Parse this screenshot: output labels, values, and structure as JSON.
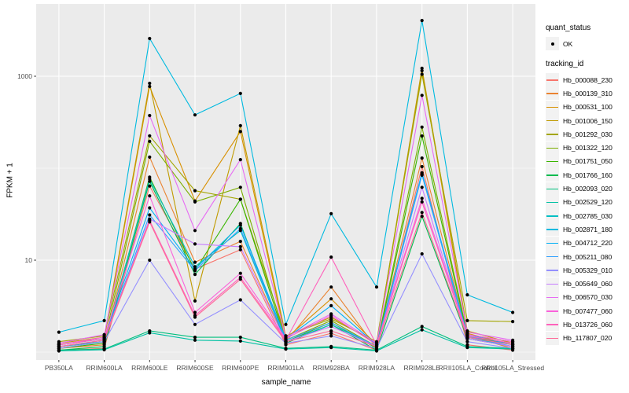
{
  "chart": {
    "ylabel": "FPKM + 1",
    "xlabel": "sample_name",
    "legend": {
      "quant_status_title": "quant_status",
      "quant_status_items": [
        {
          "label": "OK",
          "symbol": "point"
        }
      ],
      "tracking_title": "tracking_id"
    },
    "colors": {
      "panel_bg": "#EBEBEB",
      "grid": "#FFFFFF",
      "tick_text": "#4D4D4D",
      "tick_mark": "#333333",
      "point": "#000000",
      "legend_key_bg": "#F2F2F2"
    }
  },
  "chart_data": {
    "type": "line",
    "title": "",
    "xlabel": "sample_name",
    "ylabel": "FPKM + 1",
    "y_scale": "log10",
    "ylim": [
      0.66,
      6300
    ],
    "y_major_ticks": [
      {
        "label": "10",
        "value": 10
      },
      {
        "label": "1000",
        "value": 1000
      }
    ],
    "y_minor_ticks": [
      1,
      100
    ],
    "grid": "on",
    "legend_position": "right",
    "point_legend": {
      "title": "quant_status",
      "items": [
        "OK"
      ]
    },
    "series_legend_title": "tracking_id",
    "categories": [
      "PB350LA",
      "RRIM600LA",
      "RRIM600LE",
      "RRIM600SE",
      "RRIM600PE",
      "RRIM901LA",
      "RRIM928BA",
      "RRIM928LA",
      "RRIM928LE",
      "RRII105LA_Control",
      "RRII105LA_Stressed"
    ],
    "series": [
      {
        "name": "Hb_000088_230",
        "color": "#F8766D",
        "values": [
          1.05,
          1.1,
          64,
          8.0,
          13,
          1.2,
          1.6,
          1.05,
          104,
          1.2,
          1.05
        ]
      },
      {
        "name": "Hb_000139_310",
        "color": "#EA8331",
        "values": [
          1.1,
          1.2,
          132,
          9.5,
          16,
          1.3,
          5.1,
          1.1,
          129,
          1.5,
          1.1
        ]
      },
      {
        "name": "Hb_000531_100",
        "color": "#D89000",
        "values": [
          1.2,
          1.4,
          774,
          44,
          250,
          1.4,
          3.8,
          1.2,
          1150,
          1.6,
          1.2
        ]
      },
      {
        "name": "Hb_001006_150",
        "color": "#C09B00",
        "values": [
          1.25,
          1.45,
          838,
          3.6,
          290,
          1.5,
          2.4,
          1.25,
          1220,
          1.7,
          1.25
        ]
      },
      {
        "name": "Hb_001292_030",
        "color": "#A3A500",
        "values": [
          1.3,
          1.5,
          225,
          57,
          46,
          1.5,
          2.3,
          1.3,
          1050,
          2.2,
          2.15
        ]
      },
      {
        "name": "Hb_001322_120",
        "color": "#7CAE00",
        "values": [
          1.15,
          1.3,
          196,
          43,
          62,
          1.35,
          2.2,
          1.15,
          280,
          1.55,
          1.3
        ]
      },
      {
        "name": "Hb_001751_050",
        "color": "#39B600",
        "values": [
          1.1,
          1.25,
          80,
          7.7,
          46,
          1.3,
          2.1,
          1.1,
          224,
          1.5,
          1.2
        ]
      },
      {
        "name": "Hb_001766_160",
        "color": "#00BB4E",
        "values": [
          1.05,
          1.15,
          72,
          7.0,
          25,
          1.25,
          2.0,
          1.05,
          30,
          1.4,
          1.15
        ]
      },
      {
        "name": "Hb_002093_020",
        "color": "#00BF7D",
        "values": [
          1.05,
          1.08,
          1.7,
          1.45,
          1.45,
          1.1,
          1.15,
          1.05,
          1.9,
          1.15,
          1.1
        ]
      },
      {
        "name": "Hb_002529_120",
        "color": "#00C1A3",
        "values": [
          1.03,
          1.06,
          1.62,
          1.35,
          1.32,
          1.08,
          1.12,
          1.03,
          1.75,
          1.12,
          1.08
        ]
      },
      {
        "name": "Hb_002785_030",
        "color": "#00BFC4",
        "values": [
          1.15,
          1.3,
          76,
          8.5,
          21,
          1.3,
          2.0,
          1.15,
          86,
          1.45,
          1.15
        ]
      },
      {
        "name": "Hb_002871_180",
        "color": "#00BAE0",
        "values": [
          1.65,
          2.2,
          2570,
          380,
          650,
          2.0,
          32,
          5.1,
          4040,
          4.2,
          2.7
        ]
      },
      {
        "name": "Hb_004712_220",
        "color": "#00B0F6",
        "values": [
          1.2,
          1.4,
          37,
          8.0,
          24,
          1.4,
          3.2,
          1.2,
          89,
          1.55,
          1.2
        ]
      },
      {
        "name": "Hb_005211_080",
        "color": "#35A2FF",
        "values": [
          1.15,
          1.35,
          31,
          7.7,
          22,
          1.35,
          2.1,
          1.15,
          84,
          1.5,
          1.15
        ]
      },
      {
        "name": "Hb_005329_010",
        "color": "#9590FF",
        "values": [
          1.1,
          1.3,
          10,
          2.0,
          3.7,
          1.25,
          1.5,
          1.1,
          11.7,
          1.3,
          1.1
        ]
      },
      {
        "name": "Hb_005649_060",
        "color": "#C77CFF",
        "values": [
          1.15,
          1.35,
          28,
          15,
          14,
          1.3,
          1.9,
          1.15,
          62,
          1.4,
          1.15
        ]
      },
      {
        "name": "Hb_006570_030",
        "color": "#E76BF3",
        "values": [
          1.25,
          1.55,
          374,
          21,
          124,
          1.45,
          2.6,
          1.25,
          620,
          1.65,
          1.35
        ]
      },
      {
        "name": "Hb_007477_060",
        "color": "#FA62DB",
        "values": [
          1.2,
          1.45,
          50,
          2.7,
          7.2,
          1.4,
          2.5,
          1.2,
          47,
          1.55,
          1.3
        ]
      },
      {
        "name": "Hb_013726_060",
        "color": "#FF62BC",
        "values": [
          1.2,
          1.4,
          27,
          2.5,
          6.5,
          1.35,
          10.8,
          1.2,
          43,
          1.5,
          1.25
        ]
      },
      {
        "name": "Hb_117807_020",
        "color": "#FF6A98",
        "values": [
          1.15,
          1.35,
          26,
          2.4,
          6.2,
          1.3,
          1.7,
          1.15,
          33,
          1.45,
          1.2
        ]
      }
    ]
  }
}
